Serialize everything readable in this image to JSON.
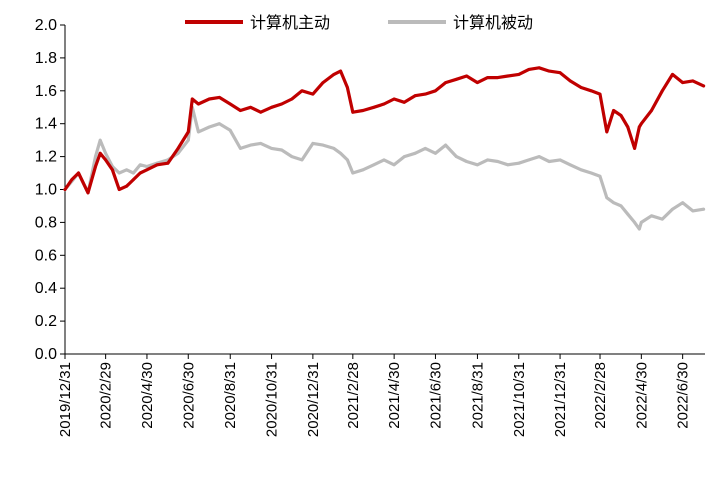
{
  "chart_data": {
    "type": "line",
    "title": "",
    "xlabel": "",
    "ylabel": "",
    "ylim": [
      0.0,
      2.0
    ],
    "yticks": [
      "0.0",
      "0.2",
      "0.4",
      "0.6",
      "0.8",
      "1.0",
      "1.2",
      "1.4",
      "1.6",
      "1.8",
      "2.0"
    ],
    "x_tick_labels": [
      "2019/12/31",
      "2020/2/29",
      "2020/4/30",
      "2020/6/30",
      "2020/8/31",
      "2020/10/31",
      "2020/12/31",
      "2021/2/28",
      "2021/4/30",
      "2021/6/30",
      "2021/8/31",
      "2021/10/31",
      "2021/12/31",
      "2022/2/28",
      "2022/4/30",
      "2022/6/30"
    ],
    "legend_position": "top",
    "grid": false,
    "series": [
      {
        "name": "计算机主动",
        "color": "#C00000",
        "x": [
          "2019/12/31",
          "2020/1/10",
          "2020/1/20",
          "2020/2/3",
          "2020/2/14",
          "2020/2/21",
          "2020/2/29",
          "2020/3/10",
          "2020/3/20",
          "2020/3/31",
          "2020/4/10",
          "2020/4/20",
          "2020/4/30",
          "2020/5/15",
          "2020/5/31",
          "2020/6/15",
          "2020/6/30",
          "2020/7/6",
          "2020/7/15",
          "2020/7/31",
          "2020/8/15",
          "2020/8/31",
          "2020/9/15",
          "2020/9/30",
          "2020/10/15",
          "2020/10/31",
          "2020/11/15",
          "2020/11/30",
          "2020/12/15",
          "2020/12/31",
          "2021/1/15",
          "2021/1/31",
          "2021/2/10",
          "2021/2/20",
          "2021/2/28",
          "2021/3/15",
          "2021/3/31",
          "2021/4/15",
          "2021/4/30",
          "2021/5/15",
          "2021/5/31",
          "2021/6/15",
          "2021/6/30",
          "2021/7/15",
          "2021/7/31",
          "2021/8/15",
          "2021/8/31",
          "2021/9/15",
          "2021/9/30",
          "2021/10/15",
          "2021/10/31",
          "2021/11/15",
          "2021/11/30",
          "2021/12/15",
          "2021/12/31",
          "2022/1/15",
          "2022/1/31",
          "2022/2/15",
          "2022/2/28",
          "2022/3/10",
          "2022/3/20",
          "2022/3/31",
          "2022/4/10",
          "2022/4/20",
          "2022/4/27",
          "2022/4/30",
          "2022/5/15",
          "2022/5/31",
          "2022/6/15",
          "2022/6/30",
          "2022/7/15",
          "2022/7/31"
        ],
        "values": [
          1.0,
          1.06,
          1.1,
          0.98,
          1.14,
          1.22,
          1.18,
          1.12,
          1.0,
          1.02,
          1.06,
          1.1,
          1.12,
          1.15,
          1.16,
          1.25,
          1.35,
          1.55,
          1.52,
          1.55,
          1.56,
          1.52,
          1.48,
          1.5,
          1.47,
          1.5,
          1.52,
          1.55,
          1.6,
          1.58,
          1.65,
          1.7,
          1.72,
          1.62,
          1.47,
          1.48,
          1.5,
          1.52,
          1.55,
          1.53,
          1.57,
          1.58,
          1.6,
          1.65,
          1.67,
          1.69,
          1.65,
          1.68,
          1.68,
          1.69,
          1.7,
          1.73,
          1.74,
          1.72,
          1.71,
          1.66,
          1.62,
          1.6,
          1.58,
          1.35,
          1.48,
          1.45,
          1.38,
          1.25,
          1.38,
          1.4,
          1.48,
          1.6,
          1.7,
          1.65,
          1.66,
          1.63
        ]
      },
      {
        "name": "计算机被动",
        "color": "#BBBBBB",
        "x": [
          "2019/12/31",
          "2020/1/10",
          "2020/1/20",
          "2020/2/3",
          "2020/2/14",
          "2020/2/21",
          "2020/2/29",
          "2020/3/10",
          "2020/3/20",
          "2020/3/31",
          "2020/4/10",
          "2020/4/20",
          "2020/4/30",
          "2020/5/15",
          "2020/5/31",
          "2020/6/15",
          "2020/6/30",
          "2020/7/6",
          "2020/7/15",
          "2020/7/31",
          "2020/8/15",
          "2020/8/31",
          "2020/9/15",
          "2020/9/30",
          "2020/10/15",
          "2020/10/31",
          "2020/11/15",
          "2020/11/30",
          "2020/12/15",
          "2020/12/31",
          "2021/1/15",
          "2021/1/31",
          "2021/2/10",
          "2021/2/20",
          "2021/2/28",
          "2021/3/15",
          "2021/3/31",
          "2021/4/15",
          "2021/4/30",
          "2021/5/15",
          "2021/5/31",
          "2021/6/15",
          "2021/6/30",
          "2021/7/15",
          "2021/7/31",
          "2021/8/15",
          "2021/8/31",
          "2021/9/15",
          "2021/9/30",
          "2021/10/15",
          "2021/10/31",
          "2021/11/15",
          "2021/11/30",
          "2021/12/15",
          "2021/12/31",
          "2022/1/15",
          "2022/1/31",
          "2022/2/15",
          "2022/2/28",
          "2022/3/10",
          "2022/3/20",
          "2022/3/31",
          "2022/4/10",
          "2022/4/20",
          "2022/4/27",
          "2022/4/30",
          "2022/5/15",
          "2022/5/31",
          "2022/6/15",
          "2022/6/30",
          "2022/7/15",
          "2022/7/31"
        ],
        "values": [
          1.0,
          1.05,
          1.1,
          0.98,
          1.2,
          1.3,
          1.22,
          1.14,
          1.1,
          1.12,
          1.1,
          1.15,
          1.14,
          1.16,
          1.18,
          1.22,
          1.3,
          1.5,
          1.35,
          1.38,
          1.4,
          1.36,
          1.25,
          1.27,
          1.28,
          1.25,
          1.24,
          1.2,
          1.18,
          1.28,
          1.27,
          1.25,
          1.22,
          1.18,
          1.1,
          1.12,
          1.15,
          1.18,
          1.15,
          1.2,
          1.22,
          1.25,
          1.22,
          1.27,
          1.2,
          1.17,
          1.15,
          1.18,
          1.17,
          1.15,
          1.16,
          1.18,
          1.2,
          1.17,
          1.18,
          1.15,
          1.12,
          1.1,
          1.08,
          0.95,
          0.92,
          0.9,
          0.85,
          0.8,
          0.76,
          0.8,
          0.84,
          0.82,
          0.88,
          0.92,
          0.87,
          0.88
        ]
      }
    ]
  }
}
